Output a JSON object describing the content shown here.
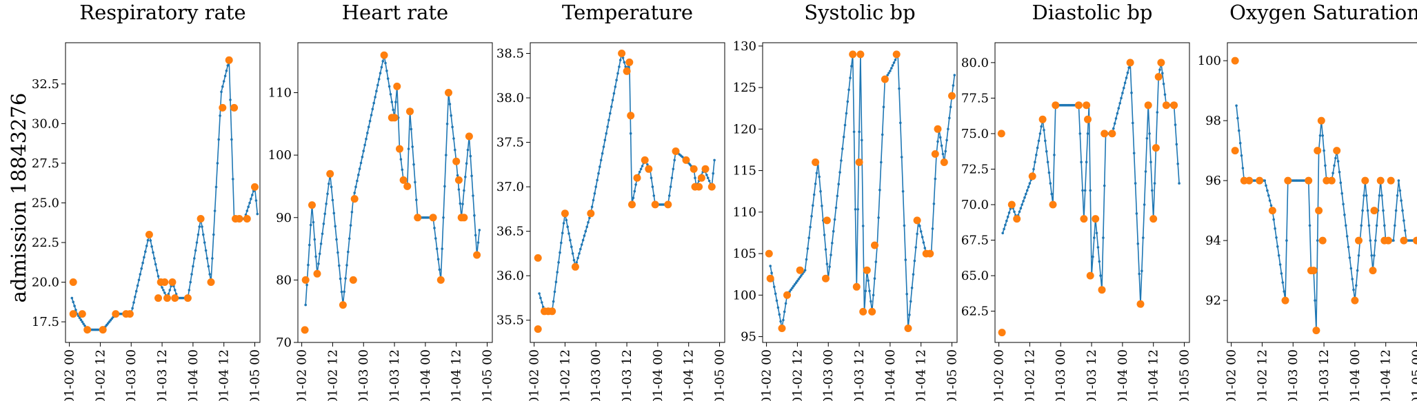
{
  "figure": {
    "row_label": "admission 18843276",
    "line_color": "#1f77b4",
    "marker_color": "#ff7f0e",
    "x_ticks": [
      "01-02 00",
      "01-02 12",
      "01-03 00",
      "01-03 12",
      "01-04 00",
      "01-04 12",
      "01-05 00"
    ]
  },
  "chart_data": [
    {
      "type": "line",
      "title": "Respiratory rate",
      "x_range_hours": [
        -1.5,
        74
      ],
      "ylim": [
        16.2,
        35.1
      ],
      "yticks": [
        17.5,
        20.0,
        22.5,
        25.0,
        27.5,
        30.0,
        32.5
      ],
      "ytick_labels": [
        "17.5",
        "20.0",
        "22.5",
        "25.0",
        "27.5",
        "30.0",
        "32.5"
      ],
      "series_line": [
        [
          1,
          19
        ],
        [
          3,
          18
        ],
        [
          7,
          17
        ],
        [
          13,
          17
        ],
        [
          18,
          18
        ],
        [
          24,
          18
        ],
        [
          31,
          23
        ],
        [
          35,
          20
        ],
        [
          38,
          19
        ],
        [
          40,
          20
        ],
        [
          42,
          19
        ],
        [
          46,
          19
        ],
        [
          51,
          24
        ],
        [
          55,
          20
        ],
        [
          59,
          32
        ],
        [
          62,
          34
        ],
        [
          64,
          24
        ],
        [
          68,
          24
        ],
        [
          72,
          26
        ],
        [
          73,
          24.3
        ]
      ],
      "observed_points": [
        [
          1.5,
          20
        ],
        [
          1.5,
          18
        ],
        [
          5,
          18
        ],
        [
          7,
          17
        ],
        [
          13,
          17
        ],
        [
          18,
          18
        ],
        [
          22,
          18
        ],
        [
          23.5,
          18
        ],
        [
          31,
          23
        ],
        [
          34.5,
          19
        ],
        [
          35.5,
          20
        ],
        [
          37,
          20
        ],
        [
          38,
          19
        ],
        [
          40,
          20
        ],
        [
          41,
          19
        ],
        [
          46,
          19
        ],
        [
          51,
          24
        ],
        [
          55,
          20
        ],
        [
          59.5,
          31
        ],
        [
          62,
          34
        ],
        [
          64,
          31
        ],
        [
          64.5,
          24
        ],
        [
          66,
          24
        ],
        [
          69,
          24
        ],
        [
          72,
          26
        ]
      ]
    },
    {
      "type": "line",
      "title": "Heart rate",
      "x_range_hours": [
        -1.5,
        74
      ],
      "ylim": [
        70,
        118
      ],
      "yticks": [
        70,
        80,
        90,
        100,
        110
      ],
      "ytick_labels": [
        "70",
        "80",
        "90",
        "100",
        "110"
      ],
      "series_line": [
        [
          1.5,
          76
        ],
        [
          4,
          92
        ],
        [
          6,
          81
        ],
        [
          11,
          97
        ],
        [
          16,
          76
        ],
        [
          20,
          93
        ],
        [
          32,
          116
        ],
        [
          36,
          106
        ],
        [
          37,
          111
        ],
        [
          38,
          101
        ],
        [
          39.5,
          96
        ],
        [
          41,
          95
        ],
        [
          42,
          107
        ],
        [
          45,
          90
        ],
        [
          51,
          90
        ],
        [
          54,
          80
        ],
        [
          57,
          110
        ],
        [
          60,
          99
        ],
        [
          62,
          90
        ],
        [
          65,
          103
        ],
        [
          68,
          84
        ],
        [
          69,
          88
        ]
      ],
      "observed_points": [
        [
          1.2,
          72
        ],
        [
          1.5,
          80
        ],
        [
          4,
          92
        ],
        [
          6,
          81
        ],
        [
          11,
          97
        ],
        [
          16,
          76
        ],
        [
          20,
          80
        ],
        [
          20.5,
          93
        ],
        [
          32,
          116
        ],
        [
          35,
          106
        ],
        [
          36,
          106
        ],
        [
          37,
          111
        ],
        [
          38,
          101
        ],
        [
          39.5,
          96
        ],
        [
          41,
          95
        ],
        [
          42,
          107
        ],
        [
          45,
          90
        ],
        [
          51,
          90
        ],
        [
          54,
          80
        ],
        [
          57,
          110
        ],
        [
          60,
          99
        ],
        [
          61,
          96
        ],
        [
          62,
          90
        ],
        [
          63,
          90
        ],
        [
          65,
          103
        ],
        [
          68,
          84
        ]
      ]
    },
    {
      "type": "line",
      "title": "Temperature",
      "x_range_hours": [
        -1.5,
        74
      ],
      "ylim": [
        35.25,
        38.62
      ],
      "yticks": [
        35.5,
        36.0,
        36.5,
        37.0,
        37.5,
        38.0,
        38.5
      ],
      "ytick_labels": [
        "35.5",
        "36.0",
        "36.5",
        "37.0",
        "37.5",
        "38.0",
        "38.5"
      ],
      "series_line": [
        [
          2,
          35.8
        ],
        [
          4,
          35.6
        ],
        [
          7,
          35.6
        ],
        [
          12,
          36.7
        ],
        [
          16,
          36.1
        ],
        [
          22,
          36.7
        ],
        [
          34,
          38.5
        ],
        [
          36,
          38.3
        ],
        [
          37,
          38.4
        ],
        [
          38,
          36.8
        ],
        [
          40,
          37.1
        ],
        [
          43,
          37.3
        ],
        [
          45,
          37.2
        ],
        [
          47,
          36.8
        ],
        [
          52,
          36.8
        ],
        [
          55,
          37.4
        ],
        [
          59,
          37.3
        ],
        [
          62,
          37.2
        ],
        [
          63,
          37.0
        ],
        [
          66,
          37.2
        ],
        [
          69,
          37.0
        ],
        [
          70,
          37.3
        ]
      ],
      "observed_points": [
        [
          1.5,
          36.2
        ],
        [
          1.5,
          35.4
        ],
        [
          4,
          35.6
        ],
        [
          5.5,
          35.6
        ],
        [
          7,
          35.6
        ],
        [
          12,
          36.7
        ],
        [
          16,
          36.1
        ],
        [
          22,
          36.7
        ],
        [
          34,
          38.5
        ],
        [
          36,
          38.3
        ],
        [
          37,
          38.4
        ],
        [
          37.5,
          37.8
        ],
        [
          38,
          36.8
        ],
        [
          40,
          37.1
        ],
        [
          43,
          37.3
        ],
        [
          44.5,
          37.2
        ],
        [
          47,
          36.8
        ],
        [
          52,
          36.8
        ],
        [
          55,
          37.4
        ],
        [
          59,
          37.3
        ],
        [
          62,
          37.2
        ],
        [
          62.5,
          37.0
        ],
        [
          64,
          37.0
        ],
        [
          65,
          37.1
        ],
        [
          66.5,
          37.2
        ],
        [
          69,
          37.0
        ]
      ]
    },
    {
      "type": "line",
      "title": "Systolic bp",
      "x_range_hours": [
        -1.5,
        74
      ],
      "ylim": [
        94.3,
        130.4
      ],
      "yticks": [
        95,
        100,
        105,
        110,
        115,
        120,
        125,
        130
      ],
      "ytick_labels": [
        "95",
        "100",
        "105",
        "110",
        "115",
        "120",
        "125",
        "130"
      ],
      "series_line": [
        [
          1.5,
          103.5
        ],
        [
          6,
          96
        ],
        [
          8,
          100
        ],
        [
          15,
          103
        ],
        [
          20,
          116
        ],
        [
          24,
          102
        ],
        [
          33.5,
          129
        ],
        [
          35,
          101
        ],
        [
          36.5,
          129
        ],
        [
          38,
          98
        ],
        [
          39,
          103
        ],
        [
          41,
          98
        ],
        [
          43,
          106
        ],
        [
          46,
          126
        ],
        [
          48,
          127
        ],
        [
          51,
          129
        ],
        [
          55,
          96
        ],
        [
          59,
          109
        ],
        [
          62,
          105
        ],
        [
          64,
          105
        ],
        [
          66,
          117
        ],
        [
          67,
          120
        ],
        [
          69,
          116
        ],
        [
          72,
          124
        ],
        [
          73,
          126.5
        ]
      ],
      "observed_points": [
        [
          1,
          105
        ],
        [
          1.5,
          102
        ],
        [
          6,
          96
        ],
        [
          8,
          100
        ],
        [
          13,
          103
        ],
        [
          19,
          116
        ],
        [
          23,
          102
        ],
        [
          23.5,
          109
        ],
        [
          33.5,
          129
        ],
        [
          35,
          101
        ],
        [
          36,
          116
        ],
        [
          36.5,
          129
        ],
        [
          37.5,
          98
        ],
        [
          39,
          103
        ],
        [
          41,
          98
        ],
        [
          42,
          106
        ],
        [
          46,
          126
        ],
        [
          50.5,
          129
        ],
        [
          55,
          96
        ],
        [
          58.5,
          109
        ],
        [
          62,
          105
        ],
        [
          63.5,
          105
        ],
        [
          65.5,
          117
        ],
        [
          66.5,
          120
        ],
        [
          69,
          116
        ],
        [
          72,
          124
        ]
      ]
    },
    {
      "type": "line",
      "title": "Diastolic bp",
      "x_range_hours": [
        -1.5,
        74
      ],
      "ylim": [
        60.3,
        81.4
      ],
      "yticks": [
        62.5,
        65.0,
        67.5,
        70.0,
        72.5,
        75.0,
        77.5,
        80.0
      ],
      "ytick_labels": [
        "62.5",
        "65.0",
        "67.5",
        "70.0",
        "72.5",
        "75.0",
        "77.5",
        "80.0"
      ],
      "series_line": [
        [
          1.5,
          68
        ],
        [
          5,
          70
        ],
        [
          7,
          69
        ],
        [
          13,
          72
        ],
        [
          17,
          76
        ],
        [
          21,
          70
        ],
        [
          22,
          77
        ],
        [
          31,
          77
        ],
        [
          33,
          69
        ],
        [
          35,
          77
        ],
        [
          36,
          65
        ],
        [
          37.5,
          69
        ],
        [
          40,
          64
        ],
        [
          41.5,
          75
        ],
        [
          44,
          75
        ],
        [
          51,
          80
        ],
        [
          55,
          63
        ],
        [
          58,
          77
        ],
        [
          60,
          69
        ],
        [
          62,
          79
        ],
        [
          63,
          80
        ],
        [
          65,
          77
        ],
        [
          68,
          77
        ],
        [
          70,
          71.5
        ]
      ],
      "observed_points": [
        [
          1,
          75
        ],
        [
          1.2,
          61
        ],
        [
          5,
          70
        ],
        [
          7,
          69
        ],
        [
          13,
          72
        ],
        [
          17,
          76
        ],
        [
          21,
          70
        ],
        [
          22,
          77
        ],
        [
          31,
          77
        ],
        [
          33,
          69
        ],
        [
          34,
          77
        ],
        [
          34.5,
          76
        ],
        [
          35.5,
          65
        ],
        [
          37.5,
          69
        ],
        [
          40,
          64
        ],
        [
          41,
          75
        ],
        [
          44,
          75
        ],
        [
          51,
          80
        ],
        [
          55,
          63
        ],
        [
          58,
          77
        ],
        [
          60,
          69
        ],
        [
          61,
          74
        ],
        [
          62,
          79
        ],
        [
          63,
          80
        ],
        [
          65,
          77
        ],
        [
          68,
          77
        ]
      ]
    },
    {
      "type": "line",
      "title": "Oxygen Saturation",
      "x_range_hours": [
        -1.5,
        74
      ],
      "ylim": [
        90.6,
        100.6
      ],
      "yticks": [
        92,
        94,
        96,
        98,
        100
      ],
      "ytick_labels": [
        "92",
        "94",
        "96",
        "98",
        "100"
      ],
      "series_line": [
        [
          2,
          98.5
        ],
        [
          5,
          96
        ],
        [
          13,
          96
        ],
        [
          16,
          95
        ],
        [
          21,
          92
        ],
        [
          22,
          96
        ],
        [
          30,
          96
        ],
        [
          31,
          93
        ],
        [
          32,
          93
        ],
        [
          33,
          91
        ],
        [
          34,
          97
        ],
        [
          35,
          98
        ],
        [
          37,
          96
        ],
        [
          39,
          96
        ],
        [
          41,
          97
        ],
        [
          48,
          92
        ],
        [
          50,
          94
        ],
        [
          52,
          96
        ],
        [
          55,
          93
        ],
        [
          58,
          96
        ],
        [
          60,
          94
        ],
        [
          63,
          94
        ],
        [
          65,
          96
        ],
        [
          68,
          94
        ],
        [
          72,
          94
        ]
      ],
      "observed_points": [
        [
          1.5,
          100
        ],
        [
          1.5,
          97
        ],
        [
          5,
          96
        ],
        [
          7,
          96
        ],
        [
          11,
          96
        ],
        [
          16,
          95
        ],
        [
          21,
          92
        ],
        [
          22,
          96
        ],
        [
          30,
          96
        ],
        [
          31,
          93
        ],
        [
          32,
          93
        ],
        [
          33,
          91
        ],
        [
          33.5,
          97
        ],
        [
          34,
          95
        ],
        [
          35,
          98
        ],
        [
          35.5,
          94
        ],
        [
          37,
          96
        ],
        [
          39,
          96
        ],
        [
          41,
          97
        ],
        [
          48,
          92
        ],
        [
          49.5,
          94
        ],
        [
          52,
          96
        ],
        [
          55,
          93
        ],
        [
          55.5,
          95
        ],
        [
          58,
          96
        ],
        [
          59.5,
          94
        ],
        [
          61,
          94
        ],
        [
          62,
          96
        ],
        [
          67,
          94
        ],
        [
          72,
          94
        ]
      ]
    }
  ]
}
